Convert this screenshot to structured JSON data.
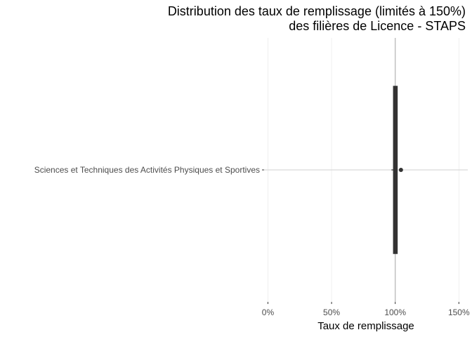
{
  "chart_data": {
    "type": "boxplot",
    "title_lines": [
      "Distribution des taux de remplissage (limités à 150%)",
      "des filières de Licence - STAPS"
    ],
    "xlabel": "Taux de remplissage",
    "ylabel": "",
    "xlim": [
      -3,
      157
    ],
    "xticks": [
      {
        "value": 0,
        "label": "0%"
      },
      {
        "value": 50,
        "label": "50%"
      },
      {
        "value": 100,
        "label": "100%"
      },
      {
        "value": 150,
        "label": "150%"
      }
    ],
    "grid": true,
    "legend": "none",
    "categories": [
      "Sciences et Techniques des Activités Physiques et Sportives"
    ],
    "boxes": [
      {
        "category": "Sciences et Techniques des Activités Physiques et Sportives",
        "whisker_low": 97,
        "q1": 99,
        "median": 100,
        "q3": 100.5,
        "whisker_high": 101,
        "outliers": [
          104.5
        ],
        "fill_color": "#8b2b3a",
        "outline_color": "#333333"
      }
    ]
  }
}
